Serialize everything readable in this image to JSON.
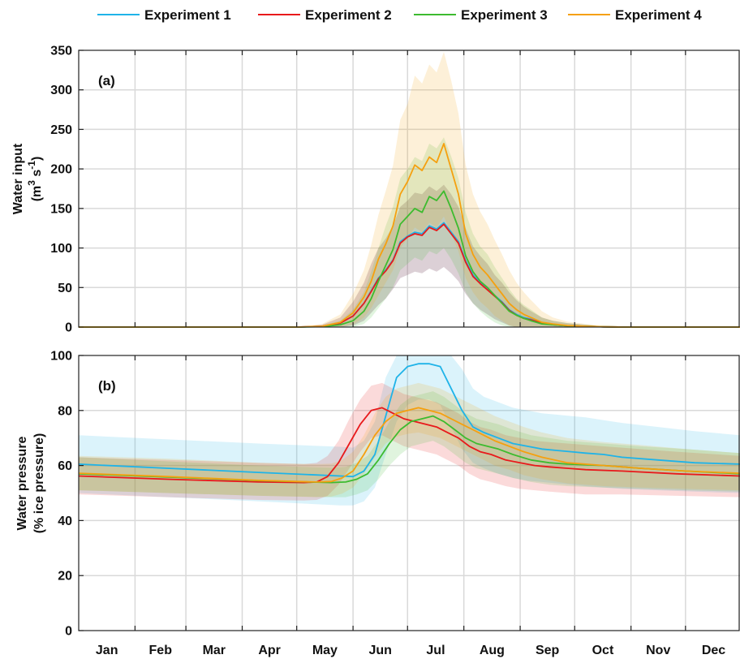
{
  "legend": [
    "Experiment 1",
    "Experiment 2",
    "Experiment 3",
    "Experiment 4"
  ],
  "colors": {
    "Experiment 1": "#1fb3e8",
    "Experiment 2": "#e8191b",
    "Experiment 3": "#3dbb2f",
    "Experiment 4": "#f5a00f"
  },
  "months": [
    "Jan",
    "Feb",
    "Mar",
    "Apr",
    "May",
    "Jun",
    "Jul",
    "Aug",
    "Sep",
    "Oct",
    "Nov",
    "Dec"
  ],
  "chart_data": [
    {
      "type": "line",
      "panel_label": "(a)",
      "ylabel_line1": "Water input",
      "ylabel_line2": "(m",
      "ylabel_sup1": "3",
      "ylabel_mid": " s",
      "ylabel_sup2": "-1",
      "ylabel_end": ")",
      "ylim": [
        0,
        350
      ],
      "yticks": [
        0,
        50,
        100,
        150,
        200,
        250,
        300,
        350
      ],
      "xlim": [
        1,
        365
      ],
      "grid": true,
      "shaded_ranges": true,
      "series": [
        {
          "name": "Experiment 1",
          "x": [
            1,
            121,
            135,
            145,
            152,
            158,
            162,
            166,
            170,
            174,
            178,
            182,
            186,
            190,
            194,
            198,
            202,
            206,
            210,
            214,
            218,
            222,
            226,
            230,
            234,
            238,
            242,
            246,
            250,
            256,
            262,
            270,
            280,
            290,
            300,
            365
          ],
          "y": [
            0,
            0,
            1,
            5,
            14,
            30,
            46,
            62,
            72,
            85,
            108,
            115,
            120,
            118,
            128,
            124,
            132,
            120,
            108,
            84,
            66,
            56,
            48,
            40,
            32,
            22,
            16,
            12,
            10,
            5,
            3,
            1.5,
            1,
            0.3,
            0,
            0
          ],
          "lo": [
            0,
            0,
            0,
            0,
            2,
            8,
            18,
            28,
            36,
            48,
            62,
            66,
            70,
            68,
            74,
            70,
            76,
            68,
            58,
            42,
            30,
            22,
            16,
            10,
            6,
            2,
            0,
            0,
            0,
            0,
            0,
            0,
            0,
            0,
            0,
            0
          ],
          "hi": [
            0,
            0,
            3,
            12,
            32,
            56,
            80,
            100,
            112,
            128,
            152,
            160,
            170,
            168,
            178,
            172,
            180,
            168,
            152,
            125,
            102,
            90,
            80,
            66,
            56,
            44,
            34,
            26,
            20,
            12,
            8,
            5,
            3,
            1,
            0,
            0
          ]
        },
        {
          "name": "Experiment 2",
          "x": [
            1,
            121,
            135,
            145,
            152,
            158,
            162,
            166,
            170,
            174,
            178,
            182,
            186,
            190,
            194,
            198,
            202,
            206,
            210,
            214,
            218,
            222,
            226,
            230,
            234,
            238,
            242,
            246,
            250,
            256,
            262,
            270,
            280,
            290,
            300,
            365
          ],
          "y": [
            0,
            0,
            1,
            5,
            14,
            30,
            45,
            61,
            71,
            84,
            106,
            114,
            118,
            116,
            126,
            122,
            130,
            118,
            106,
            82,
            64,
            55,
            47,
            39,
            31,
            21,
            15,
            11,
            9,
            5,
            3,
            1.5,
            1,
            0.3,
            0,
            0
          ],
          "lo": [
            0,
            0,
            0,
            0,
            2,
            8,
            18,
            28,
            36,
            48,
            62,
            66,
            70,
            68,
            74,
            70,
            76,
            68,
            58,
            42,
            30,
            22,
            16,
            10,
            6,
            2,
            0,
            0,
            0,
            0,
            0,
            0,
            0,
            0,
            0,
            0
          ],
          "hi": [
            0,
            0,
            3,
            12,
            32,
            56,
            80,
            100,
            112,
            128,
            152,
            160,
            170,
            168,
            178,
            172,
            180,
            168,
            152,
            125,
            102,
            90,
            80,
            66,
            56,
            44,
            34,
            26,
            20,
            12,
            8,
            5,
            3,
            1,
            0,
            0
          ]
        },
        {
          "name": "Experiment 3",
          "x": [
            1,
            121,
            135,
            145,
            152,
            158,
            162,
            166,
            170,
            174,
            178,
            182,
            186,
            190,
            194,
            198,
            202,
            206,
            210,
            214,
            218,
            222,
            226,
            230,
            234,
            238,
            242,
            246,
            250,
            256,
            262,
            270,
            280,
            290,
            300,
            365
          ],
          "y": [
            0,
            0,
            0.5,
            3,
            8,
            20,
            36,
            58,
            78,
            98,
            130,
            140,
            150,
            145,
            165,
            160,
            172,
            150,
            125,
            90,
            70,
            58,
            50,
            40,
            30,
            20,
            15,
            11,
            8,
            4,
            3,
            1.5,
            1,
            0.3,
            0,
            0
          ],
          "lo": [
            0,
            0,
            0,
            0,
            0,
            4,
            12,
            24,
            36,
            50,
            72,
            80,
            88,
            84,
            96,
            92,
            100,
            86,
            68,
            44,
            30,
            20,
            12,
            6,
            2,
            0,
            0,
            0,
            0,
            0,
            0,
            0,
            0,
            0,
            0,
            0
          ],
          "hi": [
            0,
            0,
            2,
            8,
            22,
            44,
            70,
            100,
            128,
            152,
            188,
            200,
            215,
            210,
            232,
            226,
            240,
            216,
            188,
            145,
            118,
            102,
            92,
            76,
            62,
            48,
            36,
            28,
            22,
            12,
            8,
            5,
            3,
            1,
            0,
            0
          ]
        },
        {
          "name": "Experiment 4",
          "x": [
            1,
            121,
            135,
            145,
            152,
            158,
            162,
            166,
            170,
            174,
            178,
            182,
            186,
            190,
            194,
            198,
            202,
            206,
            210,
            214,
            218,
            222,
            226,
            230,
            234,
            238,
            242,
            246,
            250,
            256,
            262,
            270,
            280,
            290,
            300,
            365
          ],
          "y": [
            0,
            0,
            1,
            6,
            18,
            38,
            58,
            86,
            105,
            128,
            168,
            184,
            205,
            198,
            215,
            208,
            232,
            200,
            168,
            118,
            92,
            76,
            66,
            54,
            42,
            30,
            22,
            16,
            12,
            6,
            4,
            2,
            1,
            0.3,
            0,
            0
          ],
          "lo": [
            0,
            0,
            0,
            0,
            3,
            12,
            24,
            40,
            56,
            72,
            100,
            112,
            126,
            120,
            132,
            126,
            140,
            118,
            96,
            62,
            44,
            32,
            24,
            14,
            8,
            2,
            0,
            0,
            0,
            0,
            0,
            0,
            0,
            0,
            0,
            0
          ],
          "hi": [
            0,
            0,
            4,
            16,
            42,
            72,
            104,
            142,
            172,
            204,
            262,
            282,
            318,
            308,
            332,
            322,
            348,
            312,
            270,
            205,
            168,
            146,
            130,
            110,
            92,
            72,
            56,
            44,
            34,
            20,
            12,
            7,
            4,
            1,
            0,
            0
          ]
        }
      ]
    },
    {
      "type": "line",
      "panel_label": "(b)",
      "ylabel_line1": "Water pressure",
      "ylabel_line2": "(% ice pressure)",
      "ylim": [
        0,
        100
      ],
      "yticks": [
        0,
        20,
        40,
        60,
        80,
        100
      ],
      "xlim": [
        1,
        365
      ],
      "grid": true,
      "shaded_ranges": true,
      "series": [
        {
          "name": "Experiment 1",
          "x": [
            1,
            50,
            100,
            145,
            152,
            158,
            164,
            170,
            176,
            182,
            188,
            194,
            200,
            206,
            212,
            218,
            224,
            232,
            240,
            248,
            256,
            264,
            272,
            280,
            290,
            300,
            320,
            340,
            365
          ],
          "y": [
            60.5,
            59,
            57.5,
            56.2,
            56,
            58,
            64,
            78,
            92,
            96,
            97,
            97,
            96,
            88,
            80,
            74,
            72,
            70,
            68,
            67,
            66,
            65.5,
            65,
            64.5,
            64,
            63,
            62,
            61,
            60.5
          ],
          "lo": [
            50,
            48.5,
            47,
            45.5,
            45.5,
            47,
            52,
            64,
            76,
            82,
            84,
            84,
            82,
            74,
            66,
            61,
            59,
            57,
            55.5,
            54.5,
            54,
            53.5,
            53,
            52.5,
            52,
            51.5,
            51,
            50.5,
            50
          ],
          "hi": [
            71,
            69.5,
            68,
            66.8,
            66.5,
            69,
            76,
            92,
            100,
            100,
            100,
            100,
            100,
            100,
            95,
            88,
            85,
            83,
            81,
            80,
            79,
            78.5,
            78,
            77.5,
            76.5,
            75.5,
            74,
            72.5,
            71
          ]
        },
        {
          "name": "Experiment 2",
          "x": [
            1,
            50,
            100,
            125,
            132,
            138,
            144,
            150,
            156,
            162,
            168,
            174,
            180,
            186,
            192,
            198,
            204,
            210,
            216,
            222,
            228,
            236,
            244,
            252,
            260,
            270,
            280,
            300,
            330,
            365
          ],
          "y": [
            56.2,
            55,
            54,
            53.8,
            54,
            56,
            61,
            68,
            75,
            80,
            81,
            79,
            77,
            76,
            75,
            74,
            72,
            70,
            67,
            65,
            64,
            62,
            61,
            60,
            59.5,
            59,
            58.5,
            58,
            57,
            56.2
          ],
          "lo": [
            49.5,
            48.5,
            47.5,
            47.3,
            47.5,
            49,
            53,
            59,
            65,
            70,
            71,
            69,
            67,
            66,
            65,
            64,
            62,
            60,
            57,
            55,
            54,
            52.5,
            51.5,
            51,
            50.5,
            50,
            49.5,
            49.5,
            49,
            48.5
          ],
          "hi": [
            63,
            62,
            61,
            60.5,
            61,
            63.5,
            69,
            77,
            84,
            89,
            90,
            88,
            86,
            85,
            84,
            83,
            81,
            79,
            76,
            74,
            73,
            71,
            70,
            69,
            68.5,
            68,
            67.5,
            66.5,
            65,
            63.5
          ]
        },
        {
          "name": "Experiment 3",
          "x": [
            1,
            50,
            100,
            140,
            148,
            154,
            160,
            166,
            172,
            178,
            184,
            190,
            196,
            202,
            208,
            214,
            220,
            226,
            232,
            240,
            250,
            260,
            270,
            290,
            310,
            335,
            365
          ],
          "y": [
            57,
            55.8,
            54.5,
            53.8,
            54,
            55,
            57,
            62,
            68,
            73,
            76,
            77,
            78,
            76,
            73,
            70,
            68,
            67,
            66,
            64,
            62,
            61,
            60.5,
            60,
            59,
            58,
            57
          ],
          "lo": [
            51,
            50,
            49,
            48.5,
            48.5,
            49.5,
            51,
            55,
            60,
            64,
            67,
            68,
            69,
            67,
            64,
            61,
            59,
            58,
            57,
            55.5,
            54,
            53,
            52.5,
            52,
            51.5,
            51,
            50.5
          ],
          "hi": [
            63,
            61.5,
            60,
            59.2,
            59.5,
            61,
            63.5,
            69,
            76,
            82,
            85,
            86,
            87,
            85,
            82,
            79,
            77,
            76,
            75,
            73,
            71,
            70,
            69,
            68,
            67,
            66,
            64.5
          ]
        },
        {
          "name": "Experiment 4",
          "x": [
            1,
            50,
            100,
            132,
            140,
            146,
            152,
            158,
            164,
            170,
            176,
            182,
            188,
            194,
            200,
            206,
            212,
            218,
            224,
            230,
            238,
            246,
            256,
            270,
            290,
            310,
            335,
            365
          ],
          "y": [
            57.2,
            56,
            54.6,
            54,
            54.2,
            55.5,
            58,
            64,
            71,
            76,
            79,
            80,
            81,
            80,
            79,
            77,
            75,
            73,
            71,
            69,
            67,
            65,
            63,
            61,
            60,
            59,
            58,
            57.2
          ],
          "lo": [
            51,
            50,
            49,
            48.5,
            48.7,
            49.8,
            52,
            57,
            63,
            68,
            70.5,
            71.5,
            72,
            71,
            70,
            68,
            66,
            64,
            62,
            60,
            58.5,
            56.5,
            55,
            53.5,
            52.5,
            52,
            51.5,
            51
          ],
          "hi": [
            63.5,
            62.5,
            61,
            60.5,
            60.7,
            62,
            65,
            71,
            79,
            85,
            88,
            89,
            90,
            89,
            88,
            86,
            84,
            82,
            80,
            78,
            76,
            74,
            72,
            70,
            68.5,
            67.5,
            66,
            64.5
          ]
        }
      ]
    }
  ]
}
